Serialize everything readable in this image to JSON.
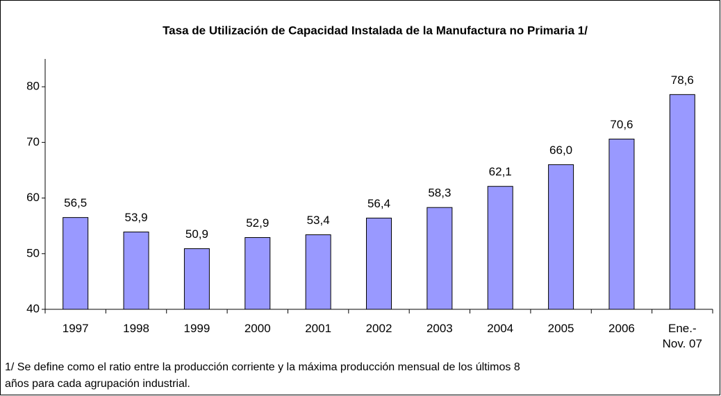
{
  "chart_data": {
    "type": "bar",
    "title": "Tasa de Utilización de Capacidad Instalada de la Manufactura no Primaria  1/",
    "categories": [
      "1997",
      "1998",
      "1999",
      "2000",
      "2001",
      "2002",
      "2003",
      "2004",
      "2005",
      "2006",
      "Ene.-\nNov. 07"
    ],
    "values": [
      56.5,
      53.9,
      50.9,
      52.9,
      53.4,
      56.4,
      58.3,
      62.1,
      66.0,
      70.6,
      78.6
    ],
    "value_labels": [
      "56,5",
      "53,9",
      "50,9",
      "52,9",
      "53,4",
      "56,4",
      "58,3",
      "62,1",
      "66,0",
      "70,6",
      "78,6"
    ],
    "color": "#9999ff",
    "ylim": [
      40,
      85
    ],
    "yticks": [
      40,
      50,
      60,
      70,
      80
    ],
    "footnote": "1/ Se define como el ratio entre la producción corriente  y la máxima producción mensual de los últimos 8\naños para cada agrupación industrial."
  }
}
